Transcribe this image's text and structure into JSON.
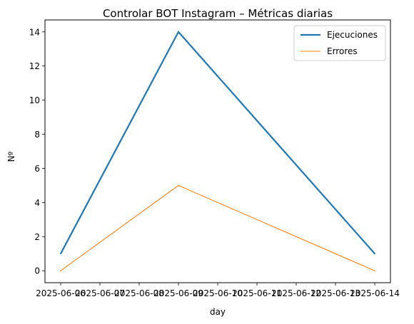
{
  "chart_data": {
    "type": "line",
    "title": "Controlar BOT Instagram – Métricas diarias",
    "xlabel": "day",
    "ylabel": "Nº",
    "x": [
      "2025-06-06",
      "2025-06-09",
      "2025-06-14"
    ],
    "x_ticks": [
      "2025-06-06",
      "2025-06-07",
      "2025-06-08",
      "2025-06-09",
      "2025-06-10",
      "2025-06-11",
      "2025-06-12",
      "2025-06-13",
      "2025-06-14"
    ],
    "y_ticks": [
      "0",
      "2",
      "4",
      "6",
      "8",
      "10",
      "12",
      "14"
    ],
    "ylim": [
      -0.7,
      14.7
    ],
    "grid": false,
    "legend_position": "top-right",
    "series": [
      {
        "name": "Ejecuciones",
        "values": [
          1,
          14,
          1
        ],
        "color": "#1f77b4"
      },
      {
        "name": "Errores",
        "values": [
          0,
          5,
          0
        ],
        "color": "#ff7f0e"
      }
    ]
  }
}
